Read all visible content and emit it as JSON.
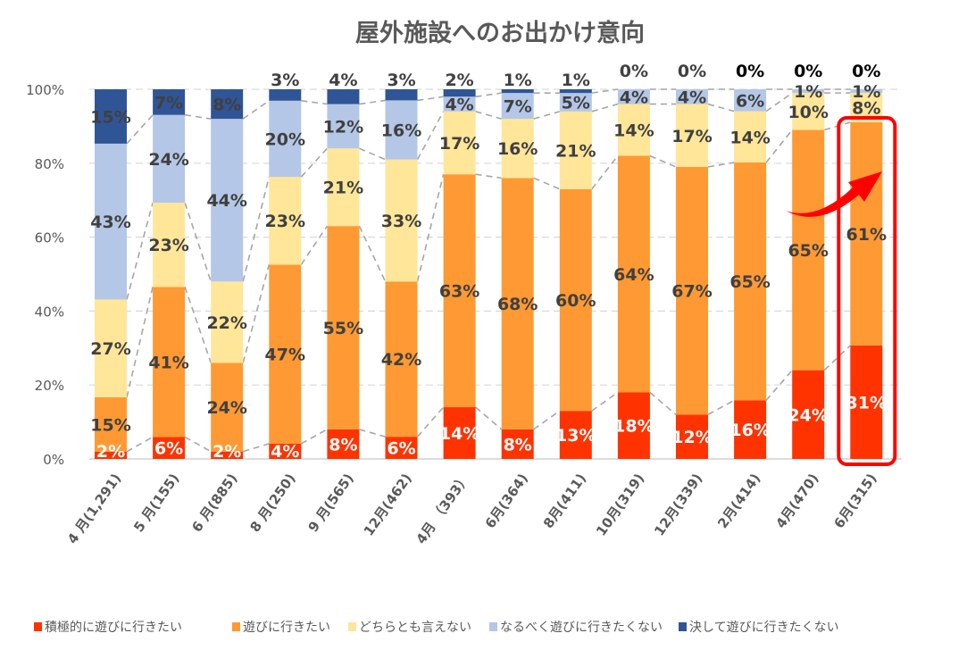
{
  "chart_data": {
    "type": "bar",
    "stacked": true,
    "title": "屋外施設へのお出かけ意向",
    "xlabel": "",
    "ylabel": "",
    "ylim": [
      0,
      100
    ],
    "yticks": [
      "0%",
      "20%",
      "40%",
      "60%",
      "80%",
      "100%"
    ],
    "grid": true,
    "legend_position": "bottom",
    "categories": [
      "4 月(1,291)",
      "5 月(155)",
      "6 月(885)",
      "8 月(250)",
      "9 月(565)",
      "12月(462)",
      "4月 （393）",
      "6月(364)",
      "8月(411)",
      "10月(319)",
      "12月(339)",
      "2月(414)",
      "4月(470)",
      "6月(315)"
    ],
    "series": [
      {
        "name": "積極的に遊びに行きたい",
        "color": "#ff3300",
        "values": [
          2,
          6,
          2,
          4,
          8,
          6,
          14,
          8,
          13,
          18,
          12,
          16,
          24,
          31
        ]
      },
      {
        "name": "遊びに行きたい",
        "color": "#ff9933",
        "values": [
          15,
          41,
          24,
          47,
          55,
          42,
          63,
          68,
          60,
          64,
          67,
          65,
          65,
          61
        ]
      },
      {
        "name": "どちらとも言えない",
        "color": "#ffe699",
        "values": [
          27,
          23,
          22,
          23,
          21,
          33,
          17,
          16,
          21,
          14,
          17,
          14,
          10,
          8
        ]
      },
      {
        "name": "なるべく遊びに行きたくない",
        "color": "#b4c7e7",
        "values": [
          43,
          24,
          44,
          20,
          12,
          16,
          4,
          7,
          5,
          4,
          4,
          6,
          1,
          1
        ]
      },
      {
        "name": "決して遊びに行きたくない",
        "color": "#2f5597",
        "values": [
          15,
          7,
          8,
          3,
          4,
          3,
          2,
          1,
          1,
          0,
          0,
          0,
          0,
          0
        ]
      }
    ],
    "highlight": {
      "category": "6月(315)",
      "color": "#ff0000"
    }
  }
}
